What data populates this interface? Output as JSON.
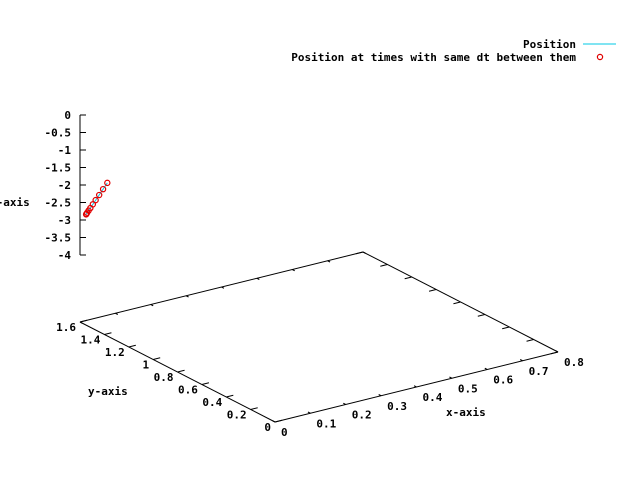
{
  "chart_data": {
    "type": "line",
    "title": "",
    "xlabel": "x-axis",
    "ylabel": "y-axis",
    "zlabel": "z-axis",
    "xticks": [
      "0",
      "0.1",
      "0.2",
      "0.3",
      "0.4",
      "0.5",
      "0.6",
      "0.7",
      "0.8"
    ],
    "yticks": [
      "0",
      "0.2",
      "0.4",
      "0.6",
      "0.8",
      "1",
      "1.2",
      "1.4",
      "1.6"
    ],
    "zticks": [
      "0",
      "-0.5",
      "-1",
      "-1.5",
      "-2",
      "-2.5",
      "-3",
      "-3.5",
      "-4"
    ],
    "xlim": [
      0,
      0.8
    ],
    "ylim": [
      0,
      1.6
    ],
    "zlim": [
      -4,
      0
    ],
    "legend_position": "top-right",
    "series": [
      {
        "name": "Position",
        "color": "#00c8e6",
        "mode": "line",
        "points": [
          {
            "x": 0.06,
            "y": 1.55,
            "z": -2.0
          },
          {
            "x": 0.0,
            "y": 1.55,
            "z": -2.75
          }
        ]
      },
      {
        "name": "Position at times with same dt between them",
        "color": "#e00000",
        "mode": "markers",
        "marker": "circle",
        "points": [
          {
            "x": 0.06,
            "y": 1.55,
            "z": -2.0
          },
          {
            "x": 0.048,
            "y": 1.55,
            "z": -2.15
          },
          {
            "x": 0.037,
            "y": 1.55,
            "z": -2.29
          },
          {
            "x": 0.027,
            "y": 1.55,
            "z": -2.41
          },
          {
            "x": 0.019,
            "y": 1.55,
            "z": -2.51
          },
          {
            "x": 0.012,
            "y": 1.55,
            "z": -2.6
          },
          {
            "x": 0.007,
            "y": 1.55,
            "z": -2.66
          },
          {
            "x": 0.003,
            "y": 1.55,
            "z": -2.71
          },
          {
            "x": 0.001,
            "y": 1.55,
            "z": -2.74
          },
          {
            "x": 0.0,
            "y": 1.55,
            "z": -2.75
          }
        ]
      }
    ]
  }
}
